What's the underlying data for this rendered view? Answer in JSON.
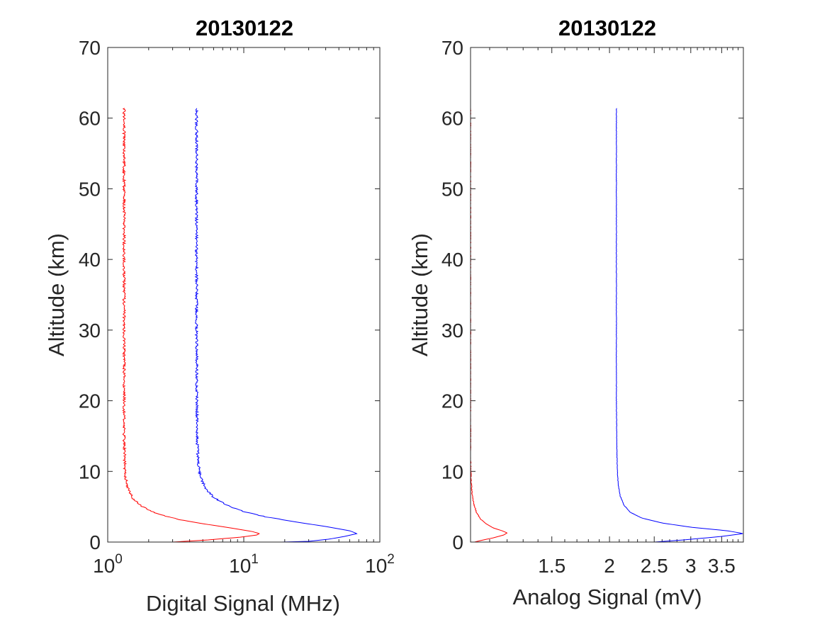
{
  "chart_data": [
    {
      "type": "line",
      "title": "20130122",
      "xlabel": "Digital Signal (MHz)",
      "ylabel": "Altitude (km)",
      "xscale": "log",
      "xlim": [
        1,
        100
      ],
      "ylim": [
        0,
        70
      ],
      "x_ticks": [
        {
          "value": 1,
          "base": "10",
          "exp": "0"
        },
        {
          "value": 10,
          "base": "10",
          "exp": "1"
        },
        {
          "value": 100,
          "base": "10",
          "exp": "2"
        }
      ],
      "y_ticks": [
        0,
        10,
        20,
        30,
        40,
        50,
        60,
        70
      ],
      "grid": false,
      "series": [
        {
          "color": "#ff0000",
          "profile": {
            "background": 1.32,
            "peak": 13.0,
            "peak_altitude": 1.2,
            "top": 61.4,
            "ground": 3.0,
            "noise": 0.022
          },
          "points": [
            [
              3.0,
              0
            ],
            [
              5.5,
              0.3
            ],
            [
              9.5,
              0.7
            ],
            [
              12.5,
              1.0
            ],
            [
              13.0,
              1.2
            ],
            [
              11.5,
              1.5
            ],
            [
              8.0,
              2.0
            ],
            [
              5.0,
              2.6
            ],
            [
              3.3,
              3.2
            ],
            [
              2.3,
              4.0
            ],
            [
              1.8,
              5.0
            ],
            [
              1.55,
              6.0
            ],
            [
              1.45,
              7.0
            ],
            [
              1.39,
              8.0
            ],
            [
              1.36,
              9.0
            ],
            [
              1.34,
              10.0
            ],
            [
              1.33,
              12.0
            ],
            [
              1.32,
              15.0
            ],
            [
              1.32,
              30.0
            ],
            [
              1.32,
              61.4
            ]
          ]
        },
        {
          "color": "#0000ff",
          "profile": {
            "background": 4.5,
            "peak": 68.0,
            "peak_altitude": 1.2,
            "top": 61.4,
            "ground": 19.0,
            "noise": 0.022
          },
          "points": [
            [
              19.0,
              0
            ],
            [
              30.0,
              0.1
            ],
            [
              42.0,
              0.4
            ],
            [
              55.0,
              0.8
            ],
            [
              68.0,
              1.2
            ],
            [
              60.0,
              1.6
            ],
            [
              40.0,
              2.2
            ],
            [
              25.0,
              2.8
            ],
            [
              15.0,
              3.5
            ],
            [
              10.0,
              4.3
            ],
            [
              7.5,
              5.2
            ],
            [
              6.0,
              6.3
            ],
            [
              5.3,
              7.5
            ],
            [
              4.9,
              8.8
            ],
            [
              4.7,
              10.0
            ],
            [
              4.6,
              12.0
            ],
            [
              4.55,
              15.0
            ],
            [
              4.5,
              30.0
            ],
            [
              4.5,
              61.4
            ]
          ]
        }
      ]
    },
    {
      "type": "line",
      "title": "20130122",
      "xlabel": "Analog Signal (mV)",
      "ylabel": "Altitude (km)",
      "xscale": "log",
      "xlim": [
        1.0,
        3.9
      ],
      "ylim": [
        0,
        70
      ],
      "x_ticks": [
        {
          "value": 1.5,
          "label": "1.5"
        },
        {
          "value": 2,
          "label": "2"
        },
        {
          "value": 2.5,
          "label": "2.5"
        },
        {
          "value": 3,
          "label": "3"
        },
        {
          "value": 3.5,
          "label": "3.5"
        }
      ],
      "y_ticks": [
        0,
        10,
        20,
        30,
        40,
        50,
        60,
        70
      ],
      "grid": false,
      "series": [
        {
          "color": "#ff0000",
          "profile": {
            "background": 1.0,
            "peak": 1.2,
            "peak_altitude": 1.2,
            "top": 61.4,
            "ground": 1.02,
            "noise": 0.002
          },
          "points": [
            [
              1.02,
              0
            ],
            [
              1.05,
              0.2
            ],
            [
              1.12,
              0.6
            ],
            [
              1.18,
              1.0
            ],
            [
              1.2,
              1.3
            ],
            [
              1.17,
              1.6
            ],
            [
              1.12,
              2.0
            ],
            [
              1.08,
              2.6
            ],
            [
              1.05,
              3.3
            ],
            [
              1.03,
              4.2
            ],
            [
              1.015,
              5.5
            ],
            [
              1.007,
              7.0
            ],
            [
              1.003,
              9.0
            ],
            [
              1.0,
              12.0
            ],
            [
              1.0,
              61.4
            ]
          ]
        },
        {
          "color": "#0000ff",
          "profile": {
            "background": 2.07,
            "peak": 3.9,
            "peak_altitude": 1.2,
            "top": 61.4,
            "ground": 2.5,
            "noise": 0.001
          },
          "points": [
            [
              2.5,
              0
            ],
            [
              2.9,
              0.3
            ],
            [
              3.5,
              0.8
            ],
            [
              3.9,
              1.2
            ],
            [
              3.6,
              1.6
            ],
            [
              3.0,
              2.1
            ],
            [
              2.6,
              2.7
            ],
            [
              2.35,
              3.4
            ],
            [
              2.22,
              4.2
            ],
            [
              2.15,
              5.2
            ],
            [
              2.11,
              6.5
            ],
            [
              2.09,
              8.0
            ],
            [
              2.08,
              10.0
            ],
            [
              2.075,
              13.0
            ],
            [
              2.07,
              20.0
            ],
            [
              2.07,
              61.4
            ]
          ]
        }
      ]
    }
  ]
}
